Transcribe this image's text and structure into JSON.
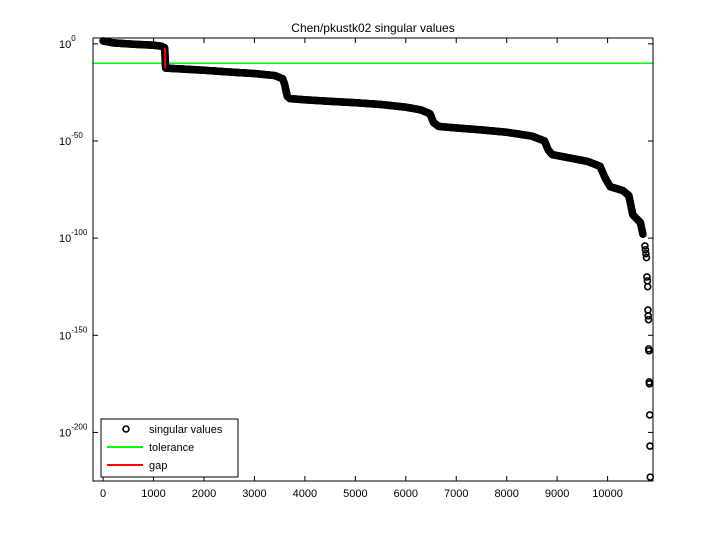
{
  "chart_data": {
    "type": "scatter",
    "title": "Chen/pkustk02 singular values",
    "xlabel": "",
    "ylabel": "",
    "xlim": [
      -200,
      10900
    ],
    "ylim_log10_exponent": [
      -225,
      3
    ],
    "yscale": "log",
    "x_ticks": [
      0,
      1000,
      2000,
      3000,
      4000,
      5000,
      6000,
      7000,
      8000,
      9000,
      10000
    ],
    "x_tick_labels": [
      "0",
      "1000",
      "2000",
      "3000",
      "4000",
      "5000",
      "6000",
      "7000",
      "8000",
      "9000",
      "10000"
    ],
    "y_ticks": [
      0,
      -50,
      -100,
      -150,
      -200
    ],
    "y_tick_labels": [
      {
        "base": "10",
        "exp": "0"
      },
      {
        "base": "10",
        "exp": "-50"
      },
      {
        "base": "10",
        "exp": "-100"
      },
      {
        "base": "10",
        "exp": "-150"
      },
      {
        "base": "10",
        "exp": "-200"
      }
    ],
    "grid": false,
    "legend_position": "bottom-left",
    "series": [
      {
        "name": "singular values",
        "style": "markers",
        "color": "#000000",
        "curve_log10": [
          [
            0,
            1.5
          ],
          [
            200,
            0.5
          ],
          [
            600,
            -0.2
          ],
          [
            1000,
            -0.7
          ],
          [
            1150,
            -1.2
          ],
          [
            1220,
            -2.0
          ],
          [
            1240,
            -12.5
          ],
          [
            1600,
            -13.0
          ],
          [
            2000,
            -13.6
          ],
          [
            2500,
            -14.5
          ],
          [
            3000,
            -15.3
          ],
          [
            3400,
            -16.3
          ],
          [
            3560,
            -18.0
          ],
          [
            3600,
            -21.0
          ],
          [
            3650,
            -27.0
          ],
          [
            3700,
            -28.2
          ],
          [
            4000,
            -28.8
          ],
          [
            4500,
            -29.6
          ],
          [
            5000,
            -30.3
          ],
          [
            5500,
            -31.2
          ],
          [
            6000,
            -32.6
          ],
          [
            6300,
            -34.0
          ],
          [
            6480,
            -36.0
          ],
          [
            6550,
            -40.5
          ],
          [
            6650,
            -42.5
          ],
          [
            7000,
            -43.3
          ],
          [
            7500,
            -44.3
          ],
          [
            8000,
            -45.5
          ],
          [
            8500,
            -47.5
          ],
          [
            8750,
            -50.0
          ],
          [
            8820,
            -54.5
          ],
          [
            8900,
            -57.0
          ],
          [
            9200,
            -58.5
          ],
          [
            9600,
            -60.5
          ],
          [
            9850,
            -63.0
          ],
          [
            9950,
            -69.0
          ],
          [
            10050,
            -73.5
          ],
          [
            10300,
            -75.5
          ],
          [
            10420,
            -78.0
          ],
          [
            10460,
            -83.0
          ],
          [
            10500,
            -88.0
          ],
          [
            10650,
            -92.0
          ],
          [
            10700,
            -98.0
          ]
        ],
        "tail_points": [
          [
            10740,
            -104.0
          ],
          [
            10750,
            -106.0
          ],
          [
            10760,
            -108.0
          ],
          [
            10770,
            -110.0
          ],
          [
            10780,
            -120.0
          ],
          [
            10790,
            -122.0
          ],
          [
            10795,
            -125.0
          ],
          [
            10800,
            -137.0
          ],
          [
            10805,
            -140.0
          ],
          [
            10810,
            -142.0
          ],
          [
            10815,
            -157.0
          ],
          [
            10820,
            -158.0
          ],
          [
            10825,
            -174.0
          ],
          [
            10830,
            -175.0
          ],
          [
            10835,
            -191.0
          ],
          [
            10840,
            -207.0
          ],
          [
            10845,
            -223.0
          ]
        ]
      },
      {
        "name": "tolerance",
        "style": "line",
        "color": "#00ff00",
        "y_log10": -10.0
      },
      {
        "name": "gap",
        "style": "line",
        "color": "#ff0000",
        "x": 1230,
        "y_log10_range": [
          -2.0,
          -12.5
        ]
      }
    ]
  }
}
